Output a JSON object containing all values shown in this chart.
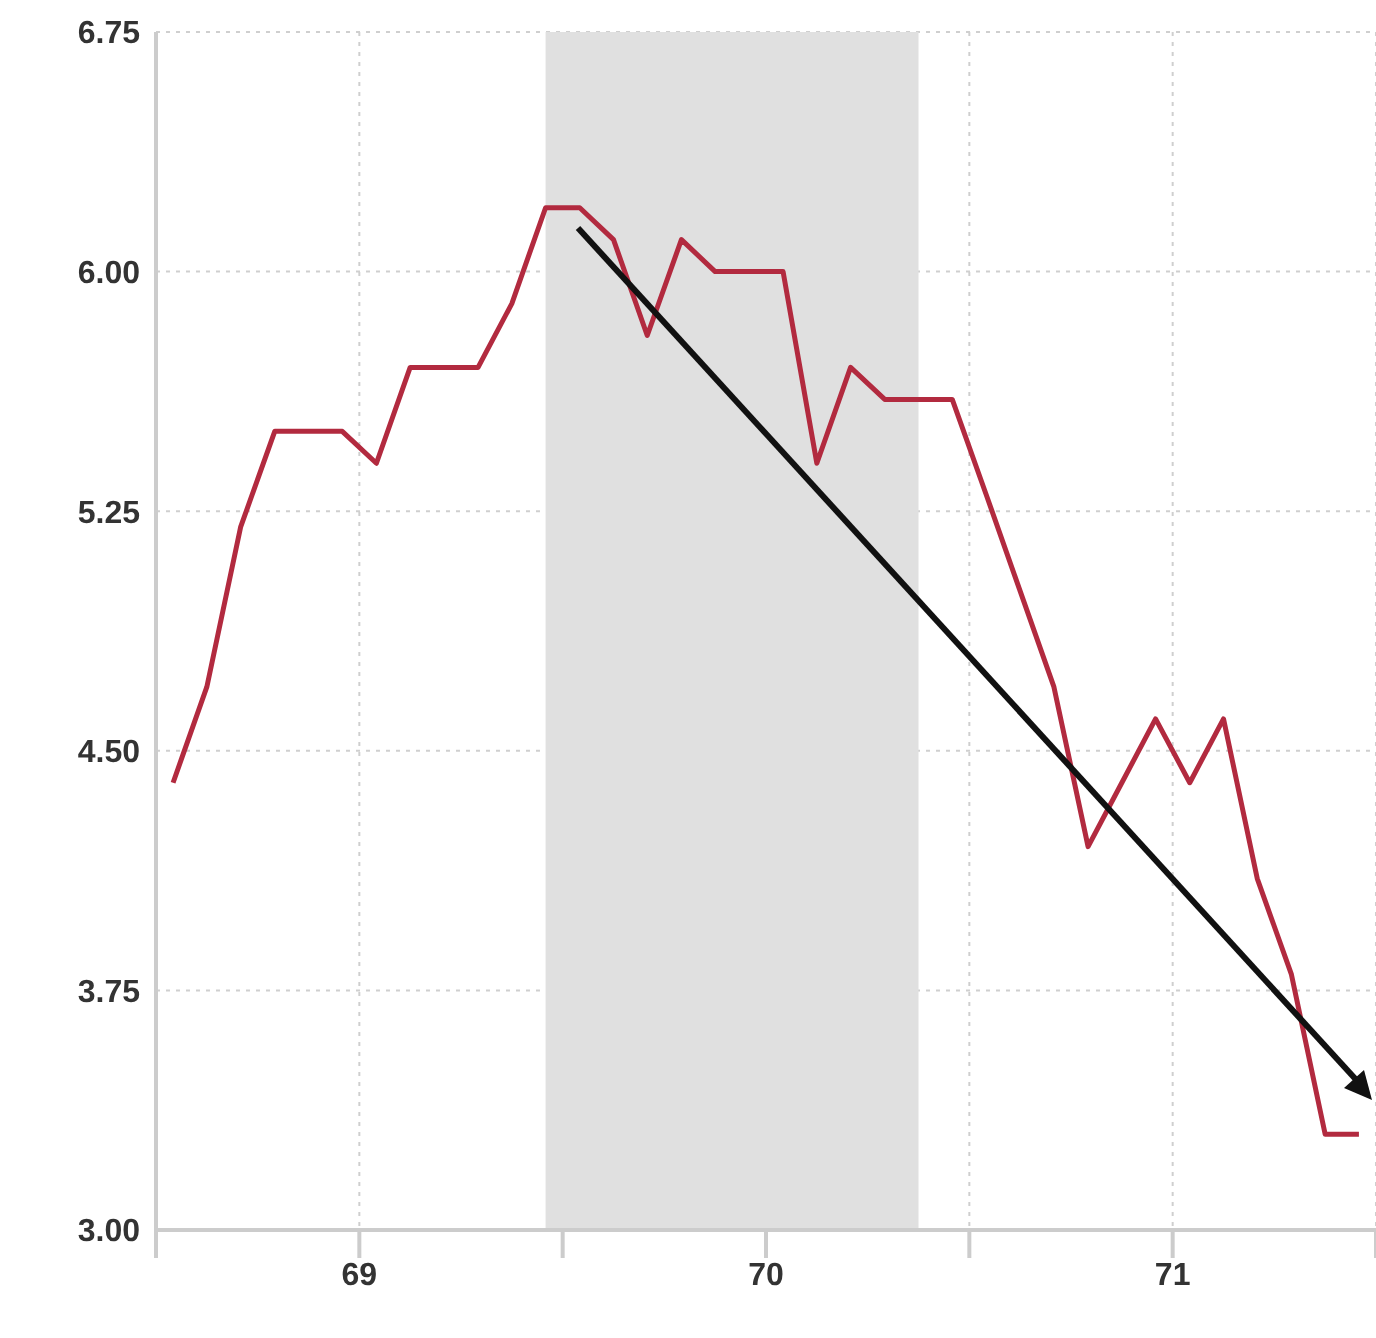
{
  "chart_data": {
    "type": "line",
    "x": [
      69.042,
      69.125,
      69.208,
      69.292,
      69.375,
      69.458,
      69.542,
      69.625,
      69.708,
      69.792,
      69.875,
      69.958,
      70.042,
      70.125,
      70.208,
      70.292,
      70.375,
      70.458,
      70.542,
      70.625,
      70.708,
      70.792,
      70.875,
      70.958,
      71.042,
      71.125,
      71.208,
      71.292,
      71.375,
      71.458,
      71.542,
      71.625,
      71.708,
      71.792,
      71.875,
      71.958
    ],
    "series": [
      {
        "color": "#b22a3f",
        "values": [
          4.4,
          4.7,
          5.2,
          5.5,
          5.5,
          5.5,
          5.4,
          5.7,
          5.7,
          5.7,
          5.9,
          6.2,
          6.2,
          6.1,
          5.8,
          6.1,
          6.0,
          6.0,
          6.0,
          5.4,
          5.7,
          5.6,
          5.6,
          5.6,
          5.3,
          5.0,
          4.7,
          4.2,
          4.4,
          4.6,
          4.4,
          4.6,
          4.1,
          3.8,
          3.3,
          3.3
        ]
      }
    ],
    "xlim": [
      69,
      72
    ],
    "xticks": [
      {
        "value": 69,
        "label": null
      },
      {
        "value": 69.5,
        "label": "69"
      },
      {
        "value": 70,
        "label": null
      },
      {
        "value": 70.5,
        "label": "70"
      },
      {
        "value": 71,
        "label": null
      },
      {
        "value": 71.5,
        "label": "71"
      },
      {
        "value": 72,
        "label": null
      }
    ],
    "ylim": [
      3,
      6.75
    ],
    "yticks": [
      {
        "value": 3,
        "label": "3.00"
      },
      {
        "value": 3.75,
        "label": "3.75"
      },
      {
        "value": 4.5,
        "label": "4.50"
      },
      {
        "value": 5.25,
        "label": "5.25"
      },
      {
        "value": 6,
        "label": "6.00"
      },
      {
        "value": 6.75,
        "label": "6.75"
      }
    ],
    "bands": [
      {
        "axis": "x",
        "from": 69.958,
        "to": 70.875,
        "color": "#e0e0e0"
      }
    ],
    "grid": true,
    "marker": "none",
    "line_style": "solid",
    "legend": false
  }
}
